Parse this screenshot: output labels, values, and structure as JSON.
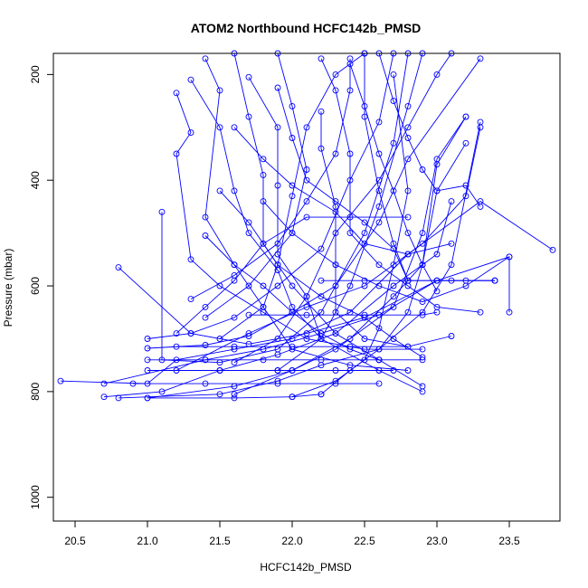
{
  "chart_data": {
    "type": "line",
    "title": "ATOM2 Northbound HCFC142b_PMSD",
    "xlabel": "HCFC142b_PMSD",
    "ylabel": "Pressure (mbar)",
    "xlim": [
      20.35,
      23.85
    ],
    "ylim": [
      1045,
      160
    ],
    "y_reversed": true,
    "x_ticks": [
      "20.5",
      "21.0",
      "21.5",
      "22.0",
      "22.5",
      "23.0",
      "23.5"
    ],
    "y_ticks": [
      "200",
      "400",
      "600",
      "800",
      "1000"
    ],
    "marker": "open circle",
    "line_color": "#0000ff",
    "grid": false,
    "series": [
      {
        "points": [
          [
            20.4,
            780
          ],
          [
            21.0,
            785
          ],
          [
            21.2,
            740
          ],
          [
            21.6,
            720
          ],
          [
            22.0,
            700
          ],
          [
            22.4,
            650
          ],
          [
            22.8,
            540
          ],
          [
            23.3,
            440
          ],
          [
            23.8,
            532
          ]
        ]
      },
      {
        "points": [
          [
            20.8,
            565
          ],
          [
            21.3,
            690
          ],
          [
            21.7,
            710
          ],
          [
            22.1,
            690
          ],
          [
            22.5,
            660
          ],
          [
            23.0,
            590
          ],
          [
            23.4,
            590
          ]
        ]
      },
      {
        "points": [
          [
            20.7,
            785
          ],
          [
            21.4,
            740
          ],
          [
            21.8,
            720
          ],
          [
            22.2,
            690
          ],
          [
            22.6,
            655
          ],
          [
            23.0,
            590
          ],
          [
            23.5,
            545
          ],
          [
            23.5,
            650
          ]
        ]
      },
      {
        "points": [
          [
            20.7,
            810
          ],
          [
            21.1,
            800
          ],
          [
            21.5,
            760
          ],
          [
            21.9,
            730
          ],
          [
            22.3,
            690
          ],
          [
            22.7,
            600
          ],
          [
            23.0,
            540
          ],
          [
            23.1,
            440
          ]
        ]
      },
      {
        "points": [
          [
            20.8,
            812
          ],
          [
            21.5,
            805
          ],
          [
            21.9,
            780
          ],
          [
            22.2,
            750
          ],
          [
            22.6,
            720
          ],
          [
            22.9,
            650
          ],
          [
            23.1,
            560
          ],
          [
            23.3,
            290
          ]
        ]
      },
      {
        "points": [
          [
            21.0,
            812
          ],
          [
            21.6,
            790
          ],
          [
            22.0,
            760
          ],
          [
            22.3,
            720
          ],
          [
            22.7,
            640
          ],
          [
            22.9,
            500
          ],
          [
            23.0,
            360
          ],
          [
            23.2,
            280
          ]
        ]
      },
      {
        "points": [
          [
            21.0,
            718
          ],
          [
            21.4,
            712
          ],
          [
            21.7,
            695
          ],
          [
            22.0,
            650
          ],
          [
            22.3,
            600
          ],
          [
            22.6,
            480
          ],
          [
            22.8,
            360
          ],
          [
            23.3,
            170
          ]
        ]
      },
      {
        "points": [
          [
            21.1,
            460
          ],
          [
            21.1,
            740
          ],
          [
            21.5,
            745
          ],
          [
            21.9,
            720
          ],
          [
            22.2,
            650
          ],
          [
            22.5,
            500
          ],
          [
            22.7,
            330
          ],
          [
            22.8,
            160
          ]
        ]
      },
      {
        "points": [
          [
            21.0,
            700
          ],
          [
            21.3,
            690
          ],
          [
            21.6,
            660
          ],
          [
            21.9,
            600
          ],
          [
            22.2,
            530
          ],
          [
            22.4,
            400
          ],
          [
            22.6,
            290
          ],
          [
            22.7,
            160
          ]
        ]
      },
      {
        "points": [
          [
            21.2,
            235
          ],
          [
            21.3,
            310
          ],
          [
            21.2,
            350
          ],
          [
            21.3,
            550
          ],
          [
            21.5,
            600
          ],
          [
            21.8,
            650
          ],
          [
            22.1,
            700
          ],
          [
            22.5,
            720
          ],
          [
            22.9,
            720
          ]
        ]
      },
      {
        "points": [
          [
            21.4,
            170
          ],
          [
            21.5,
            230
          ],
          [
            21.4,
            470
          ],
          [
            21.6,
            560
          ],
          [
            21.8,
            640
          ],
          [
            22.0,
            720
          ],
          [
            22.4,
            750
          ],
          [
            22.8,
            760
          ]
        ]
      },
      {
        "points": [
          [
            21.6,
            160
          ],
          [
            21.7,
            280
          ],
          [
            21.8,
            390
          ],
          [
            21.8,
            520
          ],
          [
            22.0,
            600
          ],
          [
            22.3,
            690
          ],
          [
            22.6,
            740
          ],
          [
            22.9,
            790
          ]
        ]
      },
      {
        "points": [
          [
            21.7,
            205
          ],
          [
            21.9,
            300
          ],
          [
            21.9,
            410
          ],
          [
            21.9,
            540
          ],
          [
            22.1,
            620
          ],
          [
            22.2,
            700
          ],
          [
            22.6,
            760
          ],
          [
            22.9,
            800
          ]
        ]
      },
      {
        "points": [
          [
            22.2,
            270
          ],
          [
            22.2,
            340
          ],
          [
            22.3,
            450
          ],
          [
            22.3,
            560
          ],
          [
            22.3,
            650
          ],
          [
            22.5,
            700
          ],
          [
            22.8,
            715
          ],
          [
            23.1,
            695
          ]
        ]
      },
      {
        "points": [
          [
            22.2,
            170
          ],
          [
            22.3,
            230
          ],
          [
            22.4,
            350
          ],
          [
            22.4,
            500
          ],
          [
            22.6,
            560
          ],
          [
            22.8,
            600
          ],
          [
            23.0,
            640
          ],
          [
            23.3,
            650
          ]
        ]
      },
      {
        "points": [
          [
            22.5,
            160
          ],
          [
            22.5,
            280
          ],
          [
            22.6,
            420
          ],
          [
            22.7,
            520
          ],
          [
            22.8,
            590
          ],
          [
            23.0,
            590
          ],
          [
            23.2,
            590
          ],
          [
            23.4,
            590
          ]
        ]
      },
      {
        "points": [
          [
            21.0,
            740
          ],
          [
            21.4,
            740
          ],
          [
            21.8,
            740
          ],
          [
            22.2,
            740
          ],
          [
            22.6,
            740
          ],
          [
            22.9,
            740
          ]
        ]
      },
      {
        "points": [
          [
            21.0,
            760
          ],
          [
            21.5,
            760
          ],
          [
            21.9,
            760
          ],
          [
            22.3,
            760
          ],
          [
            22.7,
            760
          ]
        ]
      },
      {
        "points": [
          [
            20.9,
            785
          ],
          [
            21.4,
            785
          ],
          [
            21.9,
            785
          ],
          [
            22.3,
            785
          ],
          [
            22.6,
            785
          ]
        ]
      },
      {
        "points": [
          [
            21.0,
            812
          ],
          [
            21.6,
            812
          ],
          [
            22.0,
            810
          ],
          [
            22.2,
            805
          ]
        ]
      },
      {
        "points": [
          [
            21.2,
            715
          ],
          [
            21.6,
            715
          ],
          [
            22.0,
            715
          ],
          [
            22.4,
            715
          ],
          [
            22.8,
            715
          ]
        ]
      },
      {
        "points": [
          [
            21.7,
            655
          ],
          [
            22.1,
            655
          ],
          [
            22.5,
            655
          ],
          [
            22.9,
            655
          ],
          [
            23.0,
            650
          ]
        ]
      },
      {
        "points": [
          [
            22.2,
            590
          ],
          [
            22.5,
            590
          ],
          [
            22.8,
            590
          ],
          [
            23.1,
            590
          ],
          [
            23.4,
            590
          ]
        ]
      },
      {
        "points": [
          [
            21.3,
            625
          ],
          [
            21.6,
            580
          ],
          [
            21.9,
            520
          ],
          [
            22.1,
            440
          ],
          [
            22.3,
            350
          ],
          [
            22.4,
            230
          ],
          [
            22.4,
            170
          ]
        ]
      },
      {
        "points": [
          [
            21.4,
            660
          ],
          [
            21.7,
            600
          ],
          [
            22.0,
            500
          ],
          [
            22.1,
            380
          ],
          [
            22.0,
            260
          ],
          [
            21.9,
            160
          ]
        ]
      },
      {
        "points": [
          [
            21.5,
            700
          ],
          [
            21.8,
            640
          ],
          [
            21.9,
            560
          ],
          [
            22.0,
            430
          ],
          [
            22.1,
            300
          ],
          [
            22.3,
            200
          ],
          [
            22.5,
            160
          ]
        ]
      },
      {
        "points": [
          [
            21.6,
            745
          ],
          [
            21.9,
            700
          ],
          [
            22.1,
            620
          ],
          [
            22.3,
            500
          ],
          [
            22.6,
            400
          ],
          [
            22.8,
            300
          ],
          [
            23.0,
            200
          ],
          [
            23.1,
            160
          ]
        ]
      },
      {
        "points": [
          [
            21.9,
            760
          ],
          [
            22.2,
            700
          ],
          [
            22.4,
            600
          ],
          [
            22.6,
            450
          ],
          [
            22.8,
            260
          ],
          [
            22.9,
            160
          ]
        ]
      },
      {
        "points": [
          [
            22.0,
            810
          ],
          [
            22.3,
            780
          ],
          [
            22.5,
            740
          ],
          [
            22.6,
            680
          ],
          [
            22.7,
            560
          ],
          [
            22.8,
            420
          ],
          [
            22.7,
            200
          ]
        ]
      },
      {
        "points": [
          [
            22.2,
            805
          ],
          [
            22.4,
            760
          ],
          [
            22.6,
            720
          ],
          [
            22.8,
            650
          ],
          [
            22.9,
            560
          ],
          [
            23.0,
            420
          ],
          [
            23.2,
            330
          ]
        ]
      },
      {
        "points": [
          [
            21.2,
            690
          ],
          [
            21.4,
            640
          ],
          [
            21.6,
            590
          ],
          [
            21.8,
            520
          ],
          [
            22.1,
            470
          ],
          [
            22.4,
            470
          ],
          [
            22.8,
            470
          ]
        ]
      },
      {
        "points": [
          [
            21.3,
            210
          ],
          [
            21.5,
            300
          ],
          [
            21.6,
            420
          ],
          [
            21.7,
            500
          ],
          [
            21.9,
            570
          ],
          [
            22.0,
            640
          ],
          [
            22.2,
            700
          ]
        ]
      },
      {
        "points": [
          [
            21.4,
            505
          ],
          [
            21.6,
            560
          ],
          [
            21.8,
            600
          ],
          [
            22.0,
            650
          ],
          [
            22.2,
            690
          ],
          [
            22.4,
            720
          ],
          [
            22.6,
            740
          ]
        ]
      },
      {
        "points": [
          [
            21.5,
            420
          ],
          [
            21.7,
            480
          ],
          [
            21.9,
            560
          ],
          [
            22.2,
            620
          ],
          [
            22.5,
            660
          ],
          [
            22.7,
            700
          ],
          [
            22.9,
            735
          ]
        ]
      },
      {
        "points": [
          [
            21.8,
            440
          ],
          [
            22.0,
            500
          ],
          [
            22.3,
            560
          ],
          [
            22.6,
            600
          ],
          [
            22.9,
            630
          ],
          [
            23.2,
            600
          ],
          [
            23.5,
            545
          ]
        ]
      },
      {
        "points": [
          [
            21.6,
            300
          ],
          [
            21.8,
            360
          ],
          [
            22.0,
            410
          ],
          [
            22.3,
            460
          ],
          [
            22.5,
            520
          ],
          [
            22.8,
            540
          ],
          [
            23.1,
            520
          ]
        ]
      },
      {
        "points": [
          [
            21.9,
            225
          ],
          [
            22.0,
            320
          ],
          [
            22.1,
            400
          ],
          [
            22.3,
            440
          ],
          [
            22.5,
            480
          ],
          [
            22.7,
            530
          ],
          [
            22.8,
            590
          ]
        ]
      },
      {
        "points": [
          [
            22.4,
            180
          ],
          [
            22.5,
            260
          ],
          [
            22.6,
            350
          ],
          [
            22.7,
            420
          ],
          [
            22.8,
            500
          ],
          [
            22.9,
            560
          ],
          [
            23.0,
            610
          ]
        ]
      },
      {
        "points": [
          [
            22.6,
            160
          ],
          [
            22.7,
            250
          ],
          [
            22.8,
            320
          ],
          [
            22.9,
            380
          ],
          [
            23.0,
            420
          ],
          [
            23.2,
            410
          ],
          [
            23.3,
            450
          ]
        ]
      },
      {
        "points": [
          [
            21.2,
            760
          ],
          [
            21.7,
            690
          ],
          [
            22.1,
            640
          ],
          [
            22.5,
            600
          ],
          [
            22.9,
            520
          ],
          [
            23.2,
            430
          ],
          [
            23.3,
            300
          ]
        ]
      },
      {
        "points": [
          [
            21.6,
            805
          ],
          [
            22.0,
            760
          ],
          [
            22.4,
            700
          ],
          [
            22.7,
            620
          ],
          [
            22.9,
            560
          ],
          [
            23.0,
            370
          ],
          [
            23.2,
            280
          ]
        ]
      }
    ]
  }
}
